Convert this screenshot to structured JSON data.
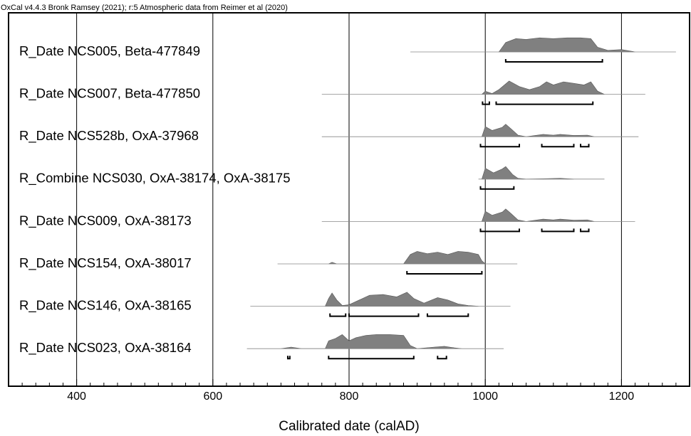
{
  "chart_data": {
    "type": "multiplot",
    "title": "OxCal v4.4.3 Bronk Ramsey (2021); r:5 Atmospheric data from Reimer et al (2020)",
    "xlabel": "Calibrated date (calAD)",
    "xlim": [
      300,
      1300
    ],
    "xticks": [
      400,
      600,
      800,
      1000,
      1200
    ],
    "xminorticks": [
      320,
      340,
      360,
      380,
      420,
      440,
      460,
      480,
      500,
      520,
      540,
      560,
      580,
      620,
      640,
      660,
      680,
      700,
      720,
      740,
      760,
      780,
      820,
      840,
      860,
      880,
      900,
      920,
      940,
      960,
      980,
      1020,
      1040,
      1060,
      1080,
      1100,
      1120,
      1140,
      1160,
      1180,
      1220,
      1240,
      1260,
      1280
    ],
    "grid": true,
    "color": "#808080",
    "rows": [
      {
        "label": "R_Date NCS005, Beta-477849",
        "line": [
          890,
          1280
        ],
        "density": {
          "x": [
            1020,
            1030,
            1045,
            1060,
            1080,
            1100,
            1120,
            1140,
            1155,
            1165,
            1180,
            1200,
            1220
          ],
          "y": [
            0,
            0.6,
            0.85,
            0.8,
            0.9,
            0.85,
            0.9,
            0.9,
            0.85,
            0.3,
            0.1,
            0.15,
            0
          ]
        },
        "hpd": [
          [
            1030,
            1172
          ]
        ]
      },
      {
        "label": "R_Date NCS007, Beta-477850",
        "line": [
          760,
          1235
        ],
        "density": {
          "x": [
            995,
            1000,
            1010,
            1020,
            1035,
            1050,
            1065,
            1080,
            1090,
            1100,
            1115,
            1130,
            1145,
            1155,
            1165,
            1175
          ],
          "y": [
            0,
            0.2,
            0.05,
            0.3,
            0.85,
            0.5,
            0.3,
            0.5,
            0.8,
            0.6,
            0.8,
            0.7,
            0.6,
            0.8,
            0.2,
            0
          ]
        },
        "hpd": [
          [
            996,
            1006
          ],
          [
            1016,
            1158
          ]
        ]
      },
      {
        "label": "R_Date NCS528b, OxA-37968",
        "line": [
          760,
          1225
        ],
        "density": {
          "x": [
            995,
            1000,
            1010,
            1025,
            1030,
            1038,
            1048,
            1060,
            1085,
            1100,
            1110,
            1130,
            1150,
            1160
          ],
          "y": [
            0,
            0.65,
            0.4,
            0.6,
            0.8,
            0.5,
            0.1,
            0,
            0.15,
            0.1,
            0.15,
            0.08,
            0.1,
            0
          ]
        },
        "hpd": [
          [
            993,
            1050
          ],
          [
            1083,
            1130
          ],
          [
            1140,
            1152
          ]
        ]
      },
      {
        "label": "R_Combine NCS030, OxA-38174, OxA-38175",
        "line": [
          990,
          1175
        ],
        "density": {
          "x": [
            995,
            1000,
            1012,
            1025,
            1030,
            1040,
            1048,
            1060,
            1110,
            1130
          ],
          "y": [
            0,
            0.7,
            0.4,
            0.65,
            0.8,
            0.3,
            0.05,
            0,
            0.05,
            0
          ]
        },
        "hpd": [
          [
            993,
            1042
          ]
        ]
      },
      {
        "label": "R_Date NCS009, OxA-38173",
        "line": [
          760,
          1220
        ],
        "density": {
          "x": [
            995,
            1000,
            1010,
            1025,
            1030,
            1038,
            1048,
            1060,
            1085,
            1100,
            1110,
            1130,
            1150,
            1160
          ],
          "y": [
            0,
            0.65,
            0.4,
            0.6,
            0.8,
            0.5,
            0.1,
            0,
            0.15,
            0.1,
            0.15,
            0.08,
            0.1,
            0
          ]
        },
        "hpd": [
          [
            993,
            1050
          ],
          [
            1083,
            1130
          ],
          [
            1140,
            1152
          ]
        ]
      },
      {
        "label": "R_Date NCS154, OxA-38017",
        "line": [
          695,
          1047
        ],
        "density": {
          "x": [
            770,
            775,
            782,
            880,
            890,
            900,
            915,
            930,
            945,
            960,
            975,
            990,
            995,
            1000
          ],
          "y": [
            0,
            0.1,
            0,
            0,
            0.6,
            0.8,
            0.65,
            0.75,
            0.6,
            0.8,
            0.75,
            0.6,
            0.2,
            0
          ]
        },
        "hpd": [
          [
            885,
            995
          ]
        ]
      },
      {
        "label": "R_Date NCS146, OxA-38165",
        "line": [
          655,
          1037
        ],
        "density": {
          "x": [
            765,
            770,
            775,
            782,
            790,
            800,
            815,
            830,
            850,
            870,
            885,
            895,
            910,
            930,
            945,
            960,
            975,
            990
          ],
          "y": [
            0,
            0.5,
            0.85,
            0.4,
            0.05,
            0.1,
            0.4,
            0.7,
            0.75,
            0.6,
            0.9,
            0.5,
            0.2,
            0.55,
            0.4,
            0.15,
            0.05,
            0
          ]
        },
        "hpd": [
          [
            772,
            795
          ],
          [
            800,
            902
          ],
          [
            915,
            975
          ]
        ]
      },
      {
        "label": "R_Date NCS023, OxA-38164",
        "line": [
          650,
          1027
        ],
        "density": {
          "x": [
            700,
            715,
            730,
            765,
            770,
            780,
            790,
            800,
            810,
            825,
            840,
            860,
            880,
            890,
            900,
            925,
            940,
            955,
            965
          ],
          "y": [
            0,
            0.1,
            0,
            0,
            0.5,
            0.65,
            0.9,
            0.5,
            0.7,
            0.85,
            0.9,
            0.9,
            0.85,
            0.2,
            0,
            0.1,
            0.15,
            0.05,
            0
          ]
        },
        "hpd": [
          [
            710,
            713
          ],
          [
            770,
            895
          ],
          [
            930,
            943
          ]
        ]
      }
    ]
  }
}
